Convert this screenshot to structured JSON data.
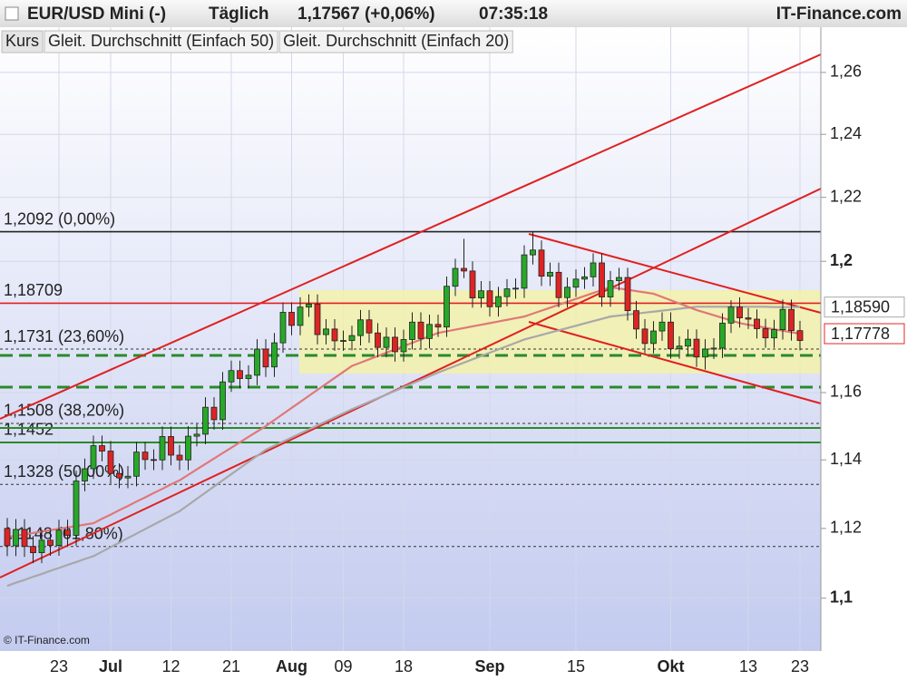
{
  "header": {
    "instrument": "EUR/USD Mini (-)",
    "period": "Täglich",
    "quote": "1,17567 (+0,06%)",
    "time": "07:35:18",
    "brand": "IT-Finance.com"
  },
  "footer": "© IT-Finance.com",
  "chart_data": {
    "type": "candlestick",
    "categories": [
      null,
      null,
      null,
      null,
      null,
      null,
      "23",
      null,
      null,
      null,
      null,
      null,
      "Jul",
      null,
      null,
      null,
      null,
      null,
      null,
      "12",
      null,
      null,
      null,
      null,
      null,
      null,
      "21",
      null,
      null,
      null,
      null,
      null,
      null,
      "Aug",
      null,
      null,
      null,
      null,
      null,
      "09",
      null,
      null,
      null,
      null,
      null,
      null,
      "18",
      null,
      null,
      null,
      null,
      null,
      null,
      null,
      null,
      null,
      "Sep",
      null,
      null,
      null,
      null,
      null,
      null,
      null,
      null,
      null,
      "15",
      null,
      null,
      null,
      null,
      null,
      null,
      null,
      null,
      null,
      null,
      "Okt",
      null,
      null,
      null,
      null,
      null,
      null,
      null,
      null,
      "13",
      null,
      null,
      null,
      null,
      null,
      "23"
    ],
    "ylim": [
      1.0851,
      1.2748
    ],
    "log_scale": true,
    "grid": true,
    "yticks": [
      {
        "value": 1.26,
        "label": "1,26"
      },
      {
        "value": 1.24,
        "label": "1,24"
      },
      {
        "value": 1.22,
        "label": "1,22"
      },
      {
        "value": 1.2,
        "label": "1,2"
      },
      {
        "value": 1.16,
        "label": "1,16"
      },
      {
        "value": 1.14,
        "label": "1,14"
      },
      {
        "value": 1.12,
        "label": "1,12"
      },
      {
        "value": 1.1,
        "label": "1,1"
      }
    ],
    "up_color": "#28a828",
    "down_color": "#dd2424",
    "series": [
      {
        "name": "Kurs",
        "open": [
          1.12,
          1.115,
          1.1197,
          1.1148,
          1.113,
          1.1166,
          1.1151,
          1.1195,
          1.118,
          1.1338,
          1.1374,
          1.1442,
          1.1426,
          1.136,
          1.1347,
          1.1352,
          1.1423,
          1.1401,
          1.14,
          1.1469,
          1.1414,
          1.14,
          1.147,
          1.1476,
          1.1556,
          1.1519,
          1.1632,
          1.1666,
          1.1642,
          1.1652,
          1.1731,
          1.1677,
          1.175,
          1.1843,
          1.1803,
          1.1859,
          1.1868,
          1.1775,
          1.1792,
          1.1756,
          1.1757,
          1.1772,
          1.182,
          1.178,
          1.1736,
          1.1767,
          1.1723,
          1.176,
          1.1813,
          1.1763,
          1.1806,
          1.1798,
          1.1923,
          1.1978,
          1.197,
          1.1887,
          1.1909,
          1.186,
          1.1891,
          1.1915,
          1.1917,
          1.202,
          1.2035,
          1.1954,
          1.1966,
          1.1888,
          1.192,
          1.1945,
          1.1952,
          1.1995,
          1.189,
          1.194,
          1.195,
          1.1848,
          1.1792,
          1.1748,
          1.1786,
          1.1813,
          1.1732,
          1.174,
          1.1761,
          1.1707,
          1.1731,
          1.1734,
          1.181,
          1.1859,
          1.1826,
          1.1822,
          1.1793,
          1.1765,
          1.179,
          1.1852,
          1.1787
        ],
        "high": [
          1.123,
          1.1227,
          1.1227,
          1.1178,
          1.1196,
          1.1196,
          1.1225,
          1.1225,
          1.1368,
          1.1404,
          1.1472,
          1.1472,
          1.1456,
          1.139,
          1.1382,
          1.1453,
          1.1453,
          1.1431,
          1.1499,
          1.1499,
          1.1444,
          1.15,
          1.1506,
          1.1586,
          1.1586,
          1.1662,
          1.1696,
          1.1696,
          1.1682,
          1.1761,
          1.1761,
          1.178,
          1.1873,
          1.1873,
          1.1889,
          1.1898,
          1.1898,
          1.1822,
          1.1822,
          1.1787,
          1.1802,
          1.185,
          1.185,
          1.181,
          1.1797,
          1.1797,
          1.179,
          1.1843,
          1.1843,
          1.1836,
          1.1836,
          1.1953,
          1.2008,
          1.207,
          1.2,
          1.1939,
          1.1939,
          1.1921,
          1.1945,
          1.1947,
          1.205,
          1.2092,
          1.2065,
          1.1996,
          1.1996,
          1.195,
          1.1975,
          1.1982,
          1.2025,
          1.2025,
          1.197,
          1.198,
          1.198,
          1.1878,
          1.1822,
          1.1816,
          1.1843,
          1.1843,
          1.177,
          1.1791,
          1.1791,
          1.1761,
          1.1764,
          1.184,
          1.188,
          1.1889,
          1.1856,
          1.1852,
          1.1823,
          1.182,
          1.1882,
          1.1882,
          1.1817
        ],
        "low": [
          1.112,
          1.112,
          1.1118,
          1.11,
          1.11,
          1.1121,
          1.1121,
          1.115,
          1.115,
          1.1308,
          1.1344,
          1.1396,
          1.133,
          1.1317,
          1.1317,
          1.1322,
          1.1371,
          1.137,
          1.137,
          1.1384,
          1.137,
          1.137,
          1.144,
          1.1446,
          1.1489,
          1.1489,
          1.1602,
          1.1612,
          1.1612,
          1.1622,
          1.1647,
          1.1647,
          1.172,
          1.1773,
          1.1773,
          1.1829,
          1.1745,
          1.1745,
          1.1726,
          1.1726,
          1.1727,
          1.1742,
          1.175,
          1.1706,
          1.1706,
          1.1693,
          1.1693,
          1.173,
          1.1733,
          1.1733,
          1.1768,
          1.1768,
          1.1893,
          1.1948,
          1.1857,
          1.1857,
          1.183,
          1.183,
          1.1861,
          1.1885,
          1.1887,
          1.199,
          1.1924,
          1.1924,
          1.1858,
          1.1858,
          1.189,
          1.1915,
          1.1922,
          1.186,
          1.186,
          1.191,
          1.1818,
          1.1762,
          1.1718,
          1.1718,
          1.1756,
          1.1702,
          1.1702,
          1.171,
          1.1677,
          1.1669,
          1.1701,
          1.1704,
          1.178,
          1.1796,
          1.1792,
          1.1763,
          1.1735,
          1.1735,
          1.176,
          1.1757,
          1.1727
        ],
        "close": [
          1.115,
          1.1197,
          1.1148,
          1.113,
          1.1166,
          1.1151,
          1.1195,
          1.118,
          1.1338,
          1.1374,
          1.1442,
          1.1426,
          1.136,
          1.1347,
          1.1352,
          1.1423,
          1.1401,
          1.14,
          1.1469,
          1.1414,
          1.14,
          1.147,
          1.1476,
          1.1556,
          1.1519,
          1.1632,
          1.1666,
          1.1642,
          1.1652,
          1.1731,
          1.1677,
          1.175,
          1.1843,
          1.1803,
          1.1859,
          1.1868,
          1.1775,
          1.1792,
          1.1756,
          1.1757,
          1.1772,
          1.182,
          1.178,
          1.1736,
          1.1767,
          1.1723,
          1.176,
          1.1813,
          1.1763,
          1.1806,
          1.1798,
          1.1923,
          1.1978,
          1.197,
          1.1887,
          1.1909,
          1.186,
          1.1891,
          1.1915,
          1.1917,
          1.202,
          1.2035,
          1.1954,
          1.1966,
          1.1888,
          1.192,
          1.1945,
          1.1952,
          1.1995,
          1.189,
          1.194,
          1.195,
          1.1848,
          1.1792,
          1.1748,
          1.1786,
          1.1813,
          1.1732,
          1.174,
          1.1761,
          1.1707,
          1.1731,
          1.1734,
          1.181,
          1.1859,
          1.1826,
          1.1822,
          1.1793,
          1.1765,
          1.179,
          1.1852,
          1.1787,
          1.1757
        ]
      },
      {
        "name": "Gleit. Durchschnitt (Einfach 50)",
        "color": "#a8a8a8",
        "values": [
          1.1035,
          1.1044,
          1.1052,
          1.1061,
          1.1069,
          1.1078,
          1.1086,
          1.1095,
          1.1103,
          1.1112,
          1.112,
          1.1133,
          1.1146,
          1.1159,
          1.1172,
          1.1185,
          1.1198,
          1.1211,
          1.1224,
          1.1237,
          1.125,
          1.1268,
          1.1286,
          1.1304,
          1.1322,
          1.134,
          1.1358,
          1.1376,
          1.1394,
          1.1412,
          1.143,
          1.1442,
          1.1454,
          1.1466,
          1.1478,
          1.149,
          1.1502,
          1.1514,
          1.1526,
          1.1538,
          1.155,
          1.1561,
          1.1572,
          1.1583,
          1.1594,
          1.1605,
          1.1616,
          1.1627,
          1.1638,
          1.1649,
          1.166,
          1.167,
          1.168,
          1.169,
          1.17,
          1.171,
          1.172,
          1.173,
          1.174,
          1.175,
          1.176,
          1.1767,
          1.1774,
          1.1781,
          1.1788,
          1.1795,
          1.1802,
          1.1809,
          1.1816,
          1.1823,
          1.183,
          1.1833,
          1.1836,
          1.1839,
          1.1842,
          1.1845,
          1.1848,
          1.1851,
          1.1854,
          1.1857,
          1.186,
          1.186,
          1.186,
          1.186,
          1.186,
          1.186,
          1.186,
          1.186,
          1.186,
          1.1859,
          1.1859,
          1.1859,
          1.1859
        ],
        "value_labels": [
          null,
          null,
          null,
          null,
          null,
          null,
          null,
          null,
          null,
          null,
          null,
          null,
          null,
          null,
          null,
          null,
          null,
          null,
          null,
          null,
          null,
          null,
          null,
          null,
          null,
          null,
          null,
          null,
          null,
          null,
          null,
          null,
          null,
          null,
          null,
          null,
          null,
          null,
          null,
          null,
          null,
          null,
          null,
          null,
          null,
          null,
          null,
          null,
          null,
          null,
          null,
          null,
          null,
          null,
          null,
          null,
          null,
          null,
          null,
          null,
          null,
          null,
          null,
          null,
          null,
          null,
          null,
          null,
          null,
          null,
          null,
          null,
          null,
          null,
          null,
          null,
          null,
          null,
          null,
          null,
          null,
          null,
          null,
          null,
          null,
          null,
          null,
          null,
          null,
          null,
          null,
          null,
          "1,18590"
        ]
      },
      {
        "name": "Gleit. Durchschnitt (Einfach 20)",
        "color": "#e07878",
        "label_color": "#e02828",
        "values": [
          1.1175,
          1.1179,
          1.1183,
          1.1187,
          1.1191,
          1.1195,
          1.1199,
          1.1203,
          1.1207,
          1.1211,
          1.1215,
          1.1228,
          1.124,
          1.1253,
          1.1265,
          1.1278,
          1.129,
          1.1303,
          1.1315,
          1.1328,
          1.134,
          1.1356,
          1.1372,
          1.1388,
          1.1404,
          1.142,
          1.1436,
          1.1452,
          1.1468,
          1.1484,
          1.15,
          1.1518,
          1.1536,
          1.1554,
          1.1572,
          1.159,
          1.1608,
          1.1626,
          1.1644,
          1.1662,
          1.168,
          1.169,
          1.17,
          1.171,
          1.172,
          1.173,
          1.174,
          1.175,
          1.176,
          1.177,
          1.178,
          1.1785,
          1.179,
          1.1795,
          1.18,
          1.1805,
          1.181,
          1.1815,
          1.182,
          1.1825,
          1.183,
          1.1839,
          1.1848,
          1.1857,
          1.1866,
          1.1875,
          1.1884,
          1.1893,
          1.1902,
          1.1911,
          1.192,
          1.1916,
          1.1912,
          1.1908,
          1.1904,
          1.19,
          1.189,
          1.188,
          1.187,
          1.186,
          1.185,
          1.1842,
          1.1834,
          1.1826,
          1.1818,
          1.181,
          1.1805,
          1.1801,
          1.1796,
          1.1791,
          1.1787,
          1.1782,
          1.17778
        ],
        "value_labels": [
          null,
          null,
          null,
          null,
          null,
          null,
          null,
          null,
          null,
          null,
          null,
          null,
          null,
          null,
          null,
          null,
          null,
          null,
          null,
          null,
          null,
          null,
          null,
          null,
          null,
          null,
          null,
          null,
          null,
          null,
          null,
          null,
          null,
          null,
          null,
          null,
          null,
          null,
          null,
          null,
          null,
          null,
          null,
          null,
          null,
          null,
          null,
          null,
          null,
          null,
          null,
          null,
          null,
          null,
          null,
          null,
          null,
          null,
          null,
          null,
          null,
          null,
          null,
          null,
          null,
          null,
          null,
          null,
          null,
          null,
          null,
          null,
          null,
          null,
          null,
          null,
          null,
          null,
          null,
          null,
          null,
          null,
          null,
          null,
          null,
          null,
          null,
          null,
          null,
          null,
          null,
          null,
          "1,17778"
        ]
      }
    ],
    "levels": [
      {
        "value": 1.2092,
        "label": "1,2092 (0,00%)",
        "color": "#222222",
        "dashed": false
      },
      {
        "value": 1.18709,
        "label": "1,18709",
        "color": "#e02020",
        "dashed": false
      },
      {
        "value": 1.1731,
        "label": "1,1731 (23,60%)",
        "color": "#333333",
        "dashed": true
      },
      {
        "value": 1.1508,
        "label": "1,1508 (38,20%)",
        "color": "#333333",
        "dashed": true
      },
      {
        "value": 1.1452,
        "label": "1,1452",
        "color": "#333333",
        "dashed": true
      },
      {
        "value": 1.1328,
        "label": "1,1328 (50,00%)",
        "color": "#333333",
        "dashed": true
      },
      {
        "value": 1.1148,
        "label": "1,1148 (61,80%)",
        "color": "#333333",
        "dashed": true
      }
    ]
  }
}
